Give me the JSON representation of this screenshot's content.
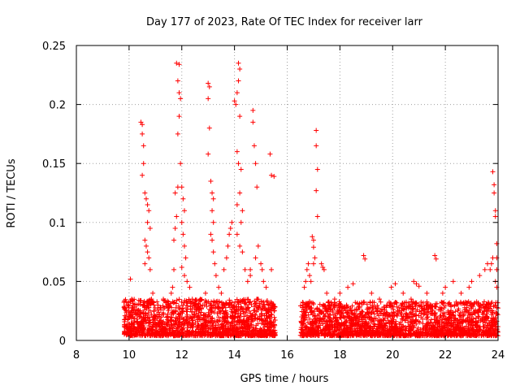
{
  "chart_data": {
    "type": "scatter",
    "title": "Day 177 of 2023, Rate Of TEC Index for receiver larr",
    "xlabel": "GPS time / hours",
    "ylabel": "ROTI / TECUs",
    "xlim": [
      8,
      24
    ],
    "ylim": [
      0,
      0.25
    ],
    "x_ticks": [
      8,
      10,
      12,
      14,
      16,
      18,
      20,
      22,
      24
    ],
    "y_ticks": [
      0,
      0.05,
      0.1,
      0.15,
      0.2,
      0.25
    ],
    "x_tick_labels": [
      "8",
      "10",
      "12",
      "14",
      "16",
      "18",
      "20",
      "22",
      "24"
    ],
    "y_tick_labels": [
      "0",
      "0.05",
      "0.1",
      "0.15",
      "0.2",
      "0.25"
    ],
    "grid": true,
    "marker": "plus",
    "color": "#ff0000",
    "series": [
      {
        "points": [
          [
            9.85,
            0.018
          ],
          [
            9.9,
            0.025
          ],
          [
            9.95,
            0.03
          ],
          [
            10.0,
            0.022
          ],
          [
            10.05,
            0.052
          ],
          [
            10.1,
            0.035
          ],
          [
            10.15,
            0.02
          ],
          [
            10.2,
            0.015
          ],
          [
            10.3,
            0.016
          ],
          [
            10.4,
            0.02
          ],
          [
            10.45,
            0.185
          ],
          [
            10.5,
            0.183
          ],
          [
            10.5,
            0.175
          ],
          [
            10.55,
            0.165
          ],
          [
            10.55,
            0.15
          ],
          [
            10.5,
            0.14
          ],
          [
            10.6,
            0.125
          ],
          [
            10.65,
            0.12
          ],
          [
            10.7,
            0.115
          ],
          [
            10.75,
            0.11
          ],
          [
            10.7,
            0.1
          ],
          [
            10.8,
            0.095
          ],
          [
            10.6,
            0.085
          ],
          [
            10.65,
            0.08
          ],
          [
            10.7,
            0.075
          ],
          [
            10.75,
            0.07
          ],
          [
            10.6,
            0.065
          ],
          [
            10.8,
            0.06
          ],
          [
            10.9,
            0.04
          ],
          [
            10.85,
            0.035
          ],
          [
            10.95,
            0.025
          ],
          [
            11.0,
            0.02
          ],
          [
            11.1,
            0.03
          ],
          [
            11.2,
            0.028
          ],
          [
            11.3,
            0.035
          ],
          [
            11.4,
            0.032
          ],
          [
            11.5,
            0.03
          ],
          [
            11.6,
            0.04
          ],
          [
            11.65,
            0.045
          ],
          [
            11.7,
            0.06
          ],
          [
            11.7,
            0.085
          ],
          [
            11.75,
            0.095
          ],
          [
            11.8,
            0.105
          ],
          [
            11.75,
            0.125
          ],
          [
            11.85,
            0.13
          ],
          [
            11.8,
            0.235
          ],
          [
            11.9,
            0.234
          ],
          [
            11.85,
            0.22
          ],
          [
            11.9,
            0.21
          ],
          [
            11.95,
            0.205
          ],
          [
            11.9,
            0.19
          ],
          [
            11.85,
            0.175
          ],
          [
            11.95,
            0.15
          ],
          [
            12.0,
            0.13
          ],
          [
            12.05,
            0.12
          ],
          [
            12.1,
            0.11
          ],
          [
            12.0,
            0.1
          ],
          [
            12.05,
            0.09
          ],
          [
            12.1,
            0.08
          ],
          [
            12.15,
            0.07
          ],
          [
            12.0,
            0.062
          ],
          [
            12.1,
            0.055
          ],
          [
            12.2,
            0.05
          ],
          [
            12.3,
            0.045
          ],
          [
            12.4,
            0.035
          ],
          [
            12.5,
            0.03
          ],
          [
            12.6,
            0.028
          ],
          [
            12.7,
            0.035
          ],
          [
            12.8,
            0.03
          ],
          [
            12.9,
            0.04
          ],
          [
            13.0,
            0.218
          ],
          [
            13.05,
            0.215
          ],
          [
            13.0,
            0.205
          ],
          [
            13.05,
            0.18
          ],
          [
            13.0,
            0.158
          ],
          [
            13.1,
            0.135
          ],
          [
            13.15,
            0.125
          ],
          [
            13.2,
            0.12
          ],
          [
            13.15,
            0.11
          ],
          [
            13.2,
            0.1
          ],
          [
            13.1,
            0.09
          ],
          [
            13.15,
            0.085
          ],
          [
            13.2,
            0.075
          ],
          [
            13.25,
            0.065
          ],
          [
            13.3,
            0.055
          ],
          [
            13.4,
            0.045
          ],
          [
            13.5,
            0.04
          ],
          [
            13.6,
            0.06
          ],
          [
            13.7,
            0.07
          ],
          [
            13.75,
            0.08
          ],
          [
            13.8,
            0.09
          ],
          [
            13.85,
            0.095
          ],
          [
            13.9,
            0.1
          ],
          [
            14.0,
            0.203
          ],
          [
            14.05,
            0.2
          ],
          [
            14.15,
            0.235
          ],
          [
            14.2,
            0.23
          ],
          [
            14.15,
            0.22
          ],
          [
            14.1,
            0.21
          ],
          [
            14.2,
            0.19
          ],
          [
            14.1,
            0.16
          ],
          [
            14.15,
            0.15
          ],
          [
            14.25,
            0.145
          ],
          [
            14.2,
            0.125
          ],
          [
            14.1,
            0.115
          ],
          [
            14.3,
            0.11
          ],
          [
            14.25,
            0.1
          ],
          [
            14.1,
            0.09
          ],
          [
            14.2,
            0.08
          ],
          [
            14.3,
            0.075
          ],
          [
            14.4,
            0.06
          ],
          [
            14.5,
            0.05
          ],
          [
            14.6,
            0.055
          ],
          [
            14.6,
            0.06
          ],
          [
            14.7,
            0.195
          ],
          [
            14.7,
            0.185
          ],
          [
            14.75,
            0.165
          ],
          [
            14.8,
            0.15
          ],
          [
            14.85,
            0.13
          ],
          [
            14.9,
            0.08
          ],
          [
            14.8,
            0.07
          ],
          [
            15.0,
            0.065
          ],
          [
            15.05,
            0.06
          ],
          [
            15.1,
            0.05
          ],
          [
            15.2,
            0.045
          ],
          [
            15.3,
            0.03
          ],
          [
            15.35,
            0.158
          ],
          [
            15.4,
            0.14
          ],
          [
            15.5,
            0.139
          ],
          [
            15.4,
            0.06
          ],
          [
            15.45,
            0.03
          ],
          [
            15.5,
            0.025
          ],
          [
            16.55,
            0.02
          ],
          [
            16.6,
            0.03
          ],
          [
            16.65,
            0.045
          ],
          [
            16.7,
            0.05
          ],
          [
            16.75,
            0.06
          ],
          [
            16.8,
            0.065
          ],
          [
            16.85,
            0.055
          ],
          [
            16.9,
            0.05
          ],
          [
            16.95,
            0.088
          ],
          [
            17.0,
            0.085
          ],
          [
            17.0,
            0.079
          ],
          [
            17.05,
            0.07
          ],
          [
            17.0,
            0.065
          ],
          [
            17.1,
            0.178
          ],
          [
            17.1,
            0.165
          ],
          [
            17.15,
            0.145
          ],
          [
            17.1,
            0.127
          ],
          [
            17.15,
            0.105
          ],
          [
            17.3,
            0.065
          ],
          [
            17.35,
            0.062
          ],
          [
            17.4,
            0.06
          ],
          [
            17.5,
            0.04
          ],
          [
            17.6,
            0.03
          ],
          [
            17.8,
            0.035
          ],
          [
            18.0,
            0.04
          ],
          [
            18.3,
            0.045
          ],
          [
            18.5,
            0.048
          ],
          [
            18.9,
            0.072
          ],
          [
            18.95,
            0.069
          ],
          [
            19.2,
            0.04
          ],
          [
            19.5,
            0.035
          ],
          [
            19.8,
            0.03
          ],
          [
            19.95,
            0.045
          ],
          [
            20.1,
            0.048
          ],
          [
            20.4,
            0.04
          ],
          [
            20.7,
            0.035
          ],
          [
            20.8,
            0.05
          ],
          [
            20.9,
            0.048
          ],
          [
            21.0,
            0.046
          ],
          [
            21.3,
            0.04
          ],
          [
            21.6,
            0.072
          ],
          [
            21.65,
            0.069
          ],
          [
            21.9,
            0.04
          ],
          [
            22.0,
            0.045
          ],
          [
            22.3,
            0.05
          ],
          [
            22.6,
            0.04
          ],
          [
            22.9,
            0.045
          ],
          [
            23.0,
            0.05
          ],
          [
            23.3,
            0.055
          ],
          [
            23.5,
            0.06
          ],
          [
            23.6,
            0.065
          ],
          [
            23.7,
            0.06
          ],
          [
            23.75,
            0.065
          ],
          [
            23.8,
            0.07
          ],
          [
            23.8,
            0.143
          ],
          [
            23.85,
            0.132
          ],
          [
            23.85,
            0.125
          ],
          [
            23.9,
            0.11
          ],
          [
            23.9,
            0.105
          ],
          [
            23.95,
            0.082
          ],
          [
            23.95,
            0.07
          ],
          [
            23.95,
            0.06
          ],
          [
            23.9,
            0.05
          ],
          [
            23.95,
            0.045
          ]
        ],
        "band_segments": [
          {
            "x_start": 9.8,
            "x_end": 15.55,
            "y_low": 0.004,
            "y_high": 0.035
          },
          {
            "x_start": 16.5,
            "x_end": 24.0,
            "y_low": 0.004,
            "y_high": 0.033
          }
        ],
        "band_density_per_hour": 260
      }
    ]
  }
}
